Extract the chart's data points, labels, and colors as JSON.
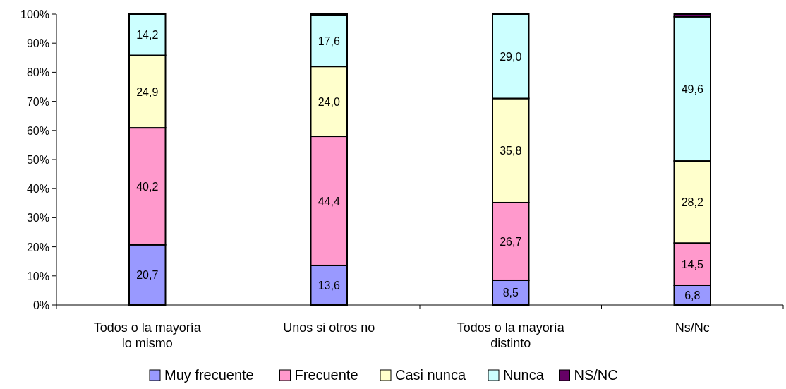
{
  "chart_data": {
    "type": "bar",
    "stacked": true,
    "categories": [
      "Todos o la mayoría lo mismo",
      "Unos si otros no",
      "Todos o la mayoría distinto",
      "Ns/Nc"
    ],
    "series": [
      {
        "name": "Muy frecuente",
        "color": "#9999ff",
        "values": [
          20.7,
          13.6,
          8.5,
          6.8
        ],
        "value_labels": [
          "20,7",
          "13,6",
          "8,5",
          "6,8"
        ]
      },
      {
        "name": "Frecuente",
        "color": "#ff99cc",
        "values": [
          40.2,
          44.4,
          26.7,
          14.5
        ],
        "value_labels": [
          "40,2",
          "44,4",
          "26,7",
          "14,5"
        ]
      },
      {
        "name": "Casi nunca",
        "color": "#ffffcc",
        "values": [
          24.9,
          24.0,
          35.8,
          28.2
        ],
        "value_labels": [
          "24,9",
          "24,0",
          "35,8",
          "28,2"
        ]
      },
      {
        "name": "Nunca",
        "color": "#ccffff",
        "values": [
          14.2,
          17.6,
          29.0,
          49.6
        ],
        "value_labels": [
          "14,2",
          "17,6",
          "29,0",
          "49,6"
        ]
      },
      {
        "name": "NS/NC",
        "color": "#660066",
        "values": [
          0,
          0.4,
          0,
          0.9
        ],
        "value_labels": [
          null,
          null,
          null,
          null
        ]
      }
    ],
    "ylim": [
      0,
      100
    ],
    "yticks": [
      {
        "value": 0,
        "label": "0%"
      },
      {
        "value": 10,
        "label": "10%"
      },
      {
        "value": 20,
        "label": "20%"
      },
      {
        "value": 30,
        "label": "30%"
      },
      {
        "value": 40,
        "label": "40%"
      },
      {
        "value": 50,
        "label": "50%"
      },
      {
        "value": 60,
        "label": "60%"
      },
      {
        "value": 70,
        "label": "70%"
      },
      {
        "value": 80,
        "label": "80%"
      },
      {
        "value": 90,
        "label": "90%"
      },
      {
        "value": 100,
        "label": "100%"
      }
    ],
    "grid": false,
    "legend": "bottom"
  }
}
